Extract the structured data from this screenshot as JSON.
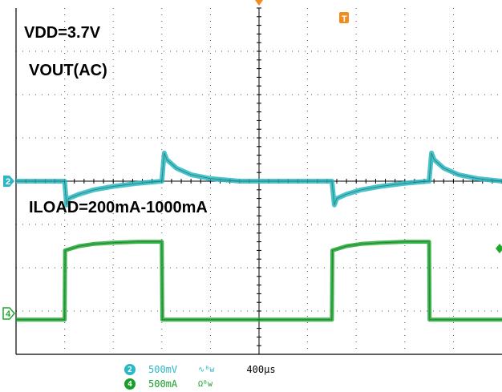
{
  "annotations": {
    "vdd": "VDD=3.7V",
    "vout": "VOUT(AC)",
    "iload": "ILOAD=200mA-1000mA"
  },
  "markers": {
    "ch2": "2",
    "ch4": "4",
    "trigger": "T"
  },
  "status": {
    "ch2": {
      "badge": "2",
      "scale": "500mV",
      "coupling": "∿ᴮw",
      "color": "#2ab7c6"
    },
    "ch4": {
      "badge": "4",
      "scale": "500mA",
      "coupling": "Ωᴮw",
      "color": "#1a9e2a"
    },
    "timebase": "400µs"
  },
  "colors": {
    "ch2": "#2ab7c6",
    "ch4": "#1fa82c",
    "grid": "#000000",
    "trigger": "#f08c1e"
  },
  "chart_data": {
    "type": "line",
    "title": "",
    "xlabel": "",
    "ylabel": "",
    "x_units": "divisions (400µs/div)",
    "xlim": [
      0,
      10
    ],
    "ylim": [
      -4,
      4
    ],
    "grid": true,
    "series": [
      {
        "name": "VOUT(AC)",
        "channel": 2,
        "x": [
          0,
          1.0,
          1.04,
          1.08,
          1.3,
          1.6,
          2.0,
          2.5,
          3.0,
          3.05,
          3.1,
          3.3,
          3.6,
          4.0,
          4.6,
          5.5,
          6.5,
          6.55,
          6.6,
          6.8,
          7.1,
          7.5,
          8.0,
          8.5,
          8.55,
          8.6,
          8.8,
          9.1,
          9.5,
          10
        ],
        "y": [
          0,
          0,
          -0.55,
          -0.4,
          -0.3,
          -0.2,
          -0.12,
          -0.05,
          0,
          0.65,
          0.5,
          0.3,
          0.15,
          0.06,
          0,
          0,
          0,
          -0.55,
          -0.4,
          -0.3,
          -0.2,
          -0.12,
          -0.05,
          0,
          0.65,
          0.5,
          0.3,
          0.15,
          0.06,
          0
        ]
      },
      {
        "name": "ILOAD",
        "channel": 4,
        "x": [
          0,
          1.0,
          1.01,
          1.3,
          1.6,
          2.0,
          2.5,
          3.0,
          3.01,
          6.5,
          6.51,
          6.8,
          7.1,
          7.5,
          8.0,
          8.5,
          8.51,
          10
        ],
        "y": [
          -3.2,
          -3.2,
          -1.6,
          -1.5,
          -1.45,
          -1.42,
          -1.4,
          -1.4,
          -3.2,
          -3.2,
          -1.6,
          -1.5,
          -1.45,
          -1.42,
          -1.4,
          -1.4,
          -3.2,
          -3.2
        ]
      }
    ]
  }
}
